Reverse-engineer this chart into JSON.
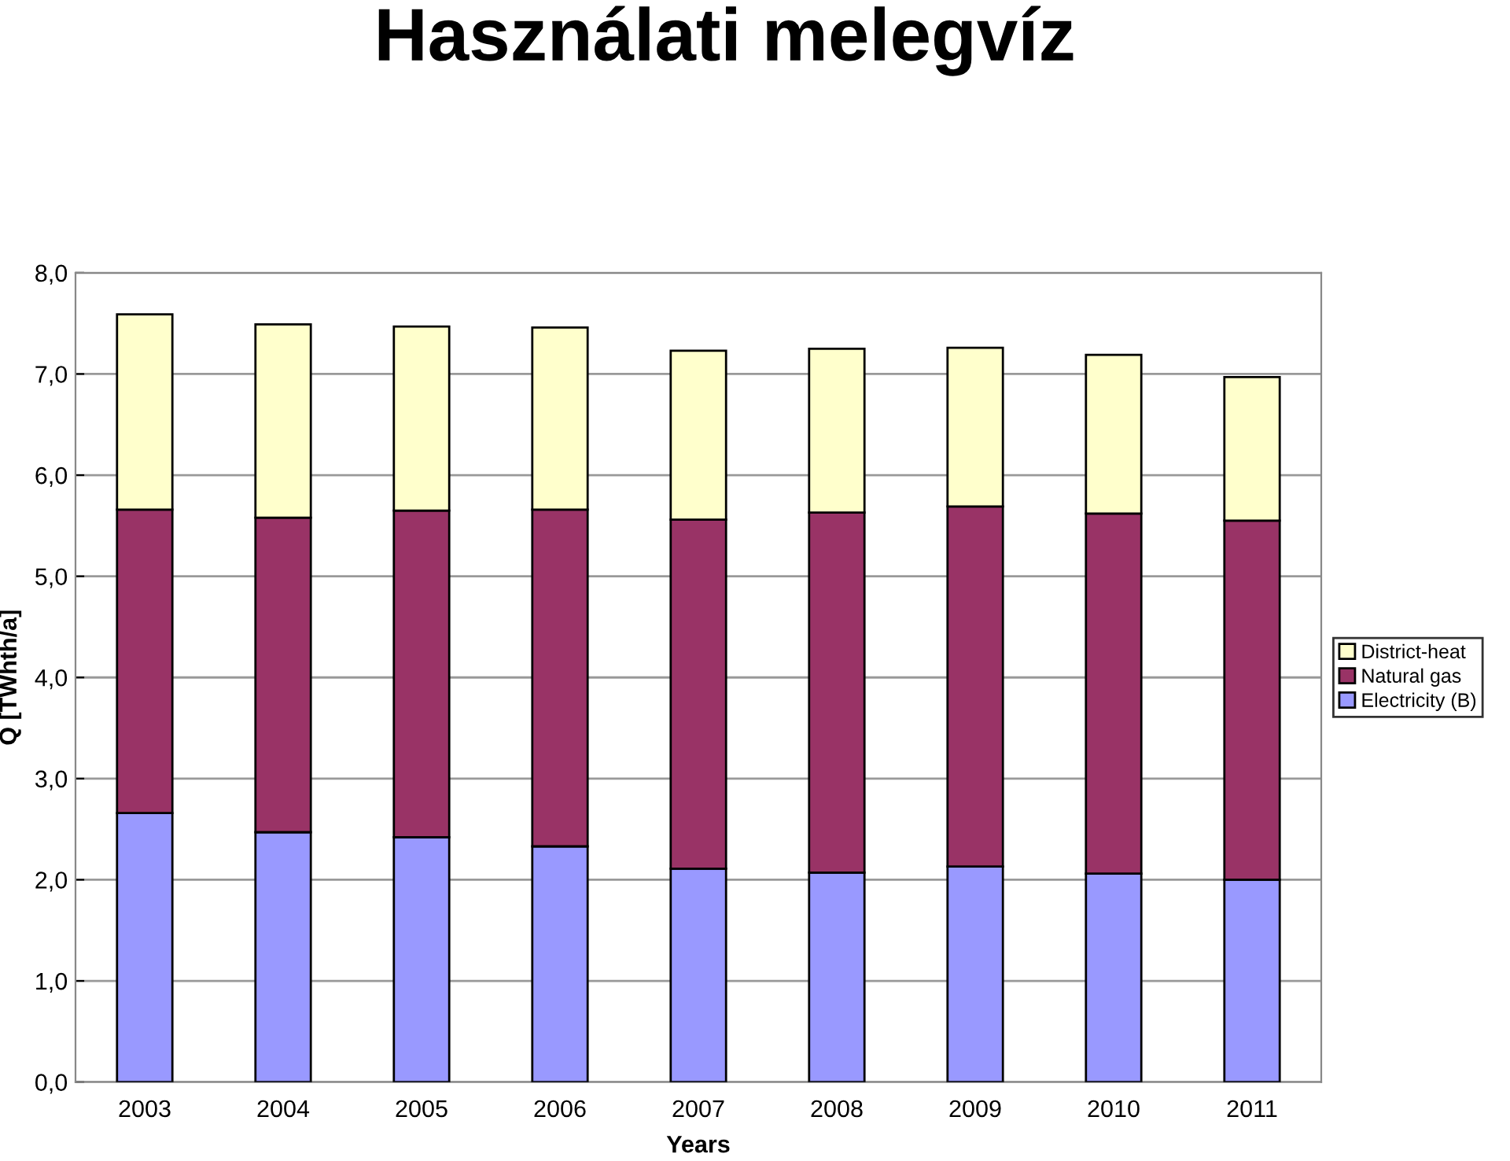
{
  "chart_data": {
    "type": "bar",
    "title": "Használati melegvíz",
    "xlabel": "Years",
    "ylabel": "Q [TWhth/a]",
    "categories": [
      "2003",
      "2004",
      "2005",
      "2006",
      "2007",
      "2008",
      "2009",
      "2010",
      "2011"
    ],
    "stacked": true,
    "series": [
      {
        "name": "Electricity (B)",
        "color": "#9999ff",
        "values": [
          2.66,
          2.47,
          2.42,
          2.33,
          2.11,
          2.07,
          2.13,
          2.06,
          2.0
        ]
      },
      {
        "name": "Natural gas",
        "color": "#993366",
        "values": [
          3.0,
          3.11,
          3.23,
          3.33,
          3.45,
          3.56,
          3.56,
          3.56,
          3.55
        ]
      },
      {
        "name": "District-heat",
        "color": "#ffffcc",
        "values": [
          1.93,
          1.91,
          1.82,
          1.8,
          1.67,
          1.62,
          1.57,
          1.57,
          1.42
        ]
      }
    ],
    "ylim": [
      0,
      8
    ],
    "yticks": [
      {
        "value": 0,
        "label": "0,0"
      },
      {
        "value": 1,
        "label": "1,0"
      },
      {
        "value": 2,
        "label": "2,0"
      },
      {
        "value": 3,
        "label": "3,0"
      },
      {
        "value": 4,
        "label": "4,0"
      },
      {
        "value": 5,
        "label": "5,0"
      },
      {
        "value": 6,
        "label": "6,0"
      },
      {
        "value": 7,
        "label": "7,0"
      },
      {
        "value": 8,
        "label": "8,0"
      }
    ],
    "grid": "y",
    "legend": "right"
  }
}
